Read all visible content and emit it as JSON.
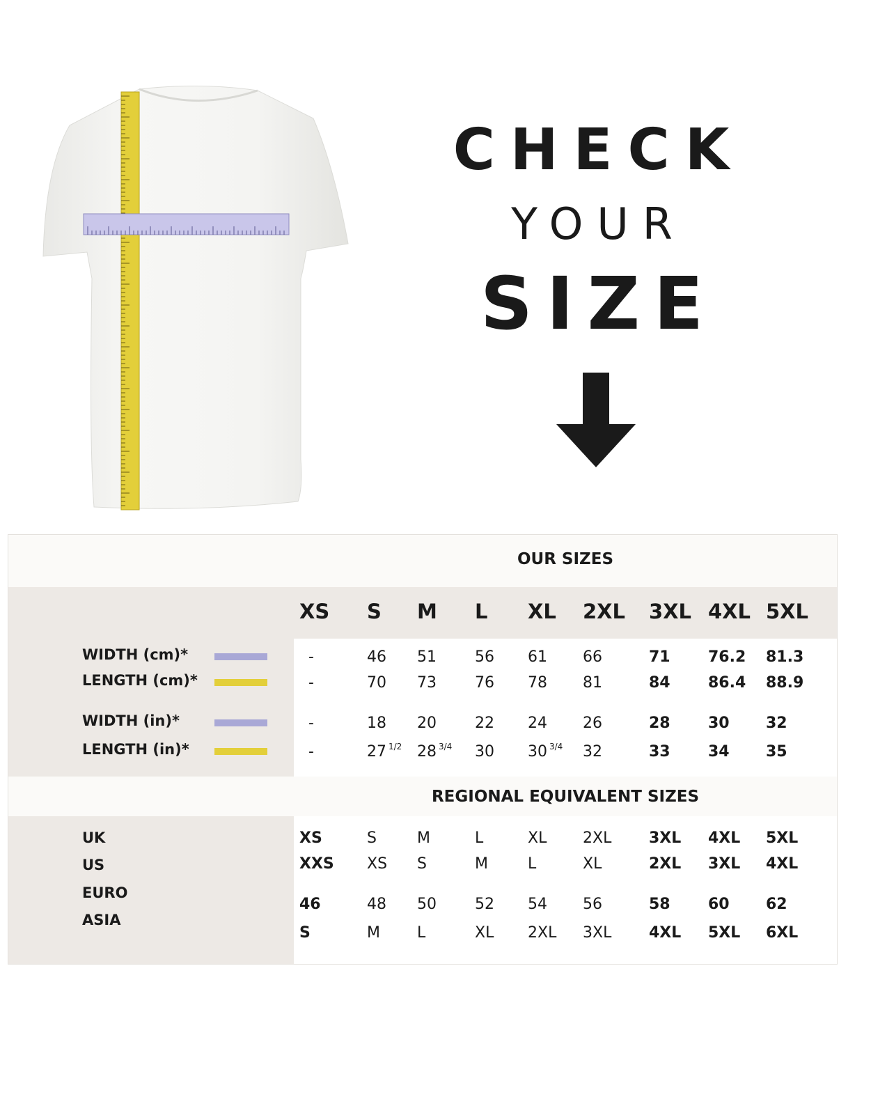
{
  "heading": {
    "line1": "CHECK",
    "line2": "YOUR",
    "line3": "SIZE"
  },
  "icons": {
    "arrow": "arrow-down-icon",
    "shirt": "t-shirt-with-tape-measures"
  },
  "colors": {
    "width_tape": "#a9a8d6",
    "length_tape": "#e3cf3a",
    "label_bg": "#ede9e5",
    "text": "#1a1a1a"
  },
  "our_sizes": {
    "title": "OUR SIZES",
    "columns": [
      "XS",
      "S",
      "M",
      "L",
      "XL",
      "2XL",
      "3XL",
      "4XL",
      "5XL"
    ],
    "rows": [
      {
        "label": "WIDTH (cm)*",
        "tape": "width",
        "values": [
          {
            "v": "-"
          },
          {
            "v": "46"
          },
          {
            "v": "51"
          },
          {
            "v": "56"
          },
          {
            "v": "61"
          },
          {
            "v": "66"
          },
          {
            "v": "71"
          },
          {
            "v": "76.2"
          },
          {
            "v": "81.3"
          }
        ]
      },
      {
        "label": "LENGTH (cm)*",
        "tape": "length",
        "values": [
          {
            "v": "-"
          },
          {
            "v": "70"
          },
          {
            "v": "73"
          },
          {
            "v": "76"
          },
          {
            "v": "78"
          },
          {
            "v": "81"
          },
          {
            "v": "84"
          },
          {
            "v": "86.4"
          },
          {
            "v": "88.9"
          }
        ]
      },
      {
        "label": "WIDTH (in)*",
        "tape": "width",
        "values": [
          {
            "v": "-"
          },
          {
            "v": "18"
          },
          {
            "v": "20"
          },
          {
            "v": "22"
          },
          {
            "v": "24"
          },
          {
            "v": "26"
          },
          {
            "v": "28"
          },
          {
            "v": "30"
          },
          {
            "v": "32"
          }
        ]
      },
      {
        "label": "LENGTH (in)*",
        "tape": "length",
        "values": [
          {
            "v": "-"
          },
          {
            "v": "27",
            "sup": "1/2"
          },
          {
            "v": "28",
            "sup": "3/4"
          },
          {
            "v": "30"
          },
          {
            "v": "30",
            "sup": "3/4"
          },
          {
            "v": "32"
          },
          {
            "v": "33"
          },
          {
            "v": "34"
          },
          {
            "v": "35"
          }
        ]
      }
    ]
  },
  "regional": {
    "title": "REGIONAL EQUIVALENT SIZES",
    "labels": [
      "UK",
      "US",
      "EURO",
      "ASIA"
    ],
    "rows": [
      [
        "XS",
        "S",
        "M",
        "L",
        "XL",
        "2XL",
        "3XL",
        "4XL",
        "5XL"
      ],
      [
        "XXS",
        "XS",
        "S",
        "M",
        "L",
        "XL",
        "2XL",
        "3XL",
        "4XL"
      ],
      [
        "46",
        "48",
        "50",
        "52",
        "54",
        "56",
        "58",
        "60",
        "62"
      ],
      [
        "S",
        "M",
        "L",
        "XL",
        "2XL",
        "3XL",
        "4XL",
        "5XL",
        "6XL"
      ]
    ]
  }
}
